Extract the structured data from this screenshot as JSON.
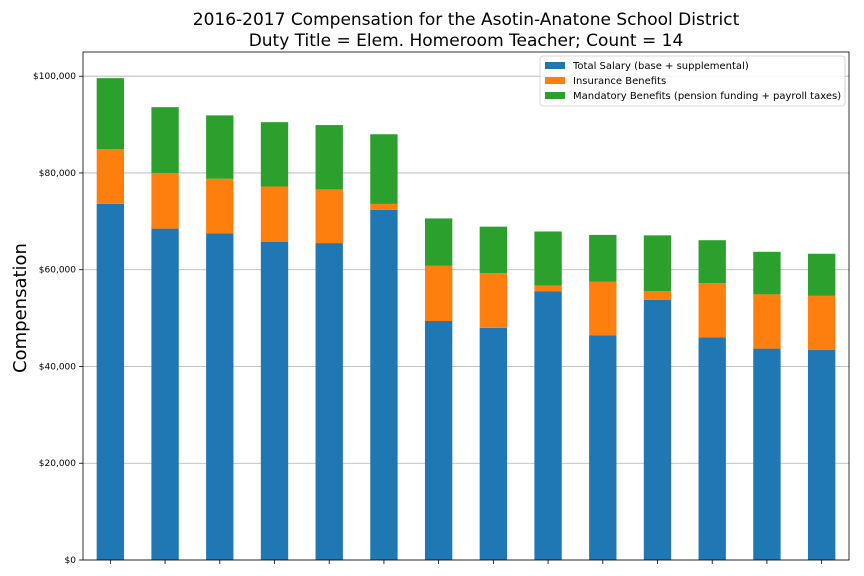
{
  "chart_data": {
    "type": "bar",
    "stacked": true,
    "title_lines": [
      "2016-2017 Compensation for the Asotin-Anatone School District",
      "Duty Title = Elem. Homeroom Teacher; Count = 14"
    ],
    "ylabel": "Compensation",
    "ylim": [
      0,
      105000
    ],
    "yticks": [
      0,
      20000,
      40000,
      60000,
      80000,
      100000
    ],
    "ytick_labels": [
      "$0",
      "$20,000",
      "$40,000",
      "$60,000",
      "$80,000",
      "$100,000"
    ],
    "grid": "horizontal",
    "legend_position": "top-right",
    "series": [
      {
        "name": "Total Salary (base + supplemental)",
        "color": "#1f77b4",
        "values": [
          73600,
          68500,
          67500,
          65800,
          65500,
          72400,
          49400,
          48000,
          55500,
          46400,
          53800,
          46000,
          43700,
          43400
        ]
      },
      {
        "name": "Insurance Benefits",
        "color": "#ff7f0e",
        "values": [
          11300,
          11500,
          11300,
          11400,
          11100,
          1200,
          11400,
          11300,
          1200,
          11100,
          1800,
          11200,
          11200,
          11200
        ]
      },
      {
        "name": "Mandatory Benefits (pension funding + payroll taxes)",
        "color": "#2ca02c",
        "values": [
          14700,
          13600,
          13100,
          13300,
          13300,
          14400,
          9800,
          9600,
          11200,
          9700,
          11500,
          8900,
          8800,
          8700
        ]
      }
    ]
  }
}
